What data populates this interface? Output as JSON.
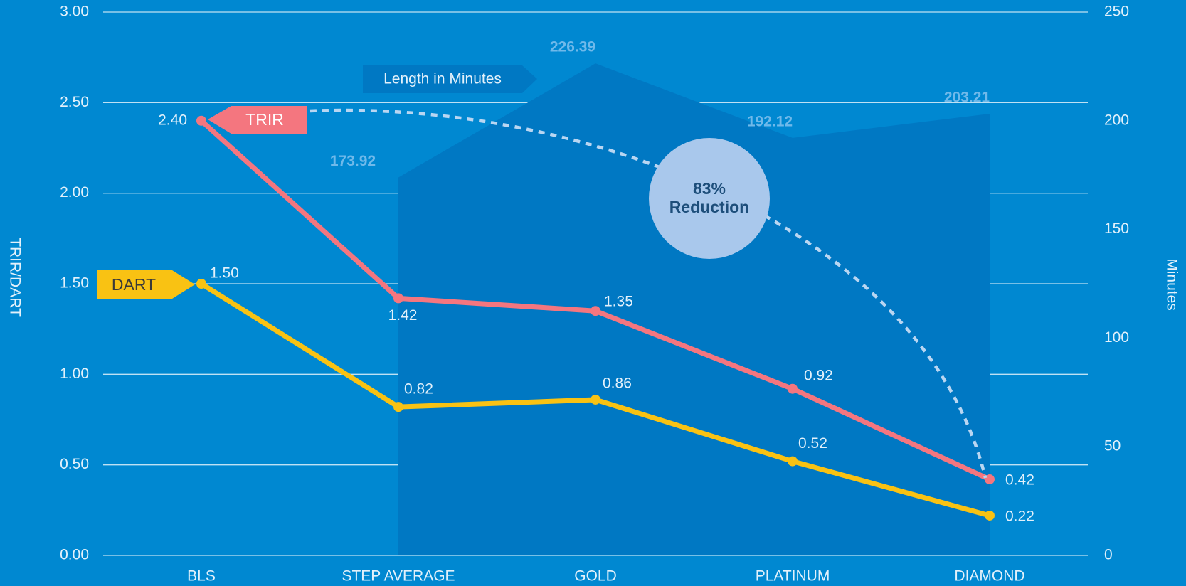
{
  "chart_data": {
    "type": "line",
    "categories": [
      "BLS",
      "STEP AVERAGE",
      "GOLD",
      "PLATINUM",
      "DIAMOND"
    ],
    "ylabel": "TRIR/DART",
    "y2label": "Minutes",
    "ylim": [
      0,
      3
    ],
    "yticks": [
      {
        "value": 0,
        "label": "0.00"
      },
      {
        "value": 0.5,
        "label": "0.50"
      },
      {
        "value": 1,
        "label": "1.00"
      },
      {
        "value": 1.5,
        "label": "1.50"
      },
      {
        "value": 2,
        "label": "2.00"
      },
      {
        "value": 2.5,
        "label": "2.50"
      },
      {
        "value": 3,
        "label": "3.00"
      }
    ],
    "y2lim": [
      0,
      250
    ],
    "y2ticks": [
      0,
      50,
      100,
      150,
      200,
      250
    ],
    "grid": true,
    "series": [
      {
        "name": "Length in Minutes",
        "type": "area",
        "axis": "y2",
        "color": "#0078c3",
        "values": [
          null,
          173.92,
          226.39,
          192.12,
          203.21
        ]
      },
      {
        "name": "TRIR",
        "color": "#f4767f",
        "values": [
          2.4,
          1.42,
          1.35,
          0.92,
          0.42
        ],
        "value_labels": [
          "2.40",
          "1.42",
          "1.35",
          "0.92",
          "0.42"
        ]
      },
      {
        "name": "DART",
        "color": "#f9c213",
        "values": [
          1.5,
          0.82,
          0.86,
          0.52,
          0.22
        ],
        "value_labels": [
          "1.50",
          "0.82",
          "0.86",
          "0.52",
          "0.22"
        ]
      }
    ],
    "annotation": [
      "83%",
      "Reduction"
    ]
  }
}
